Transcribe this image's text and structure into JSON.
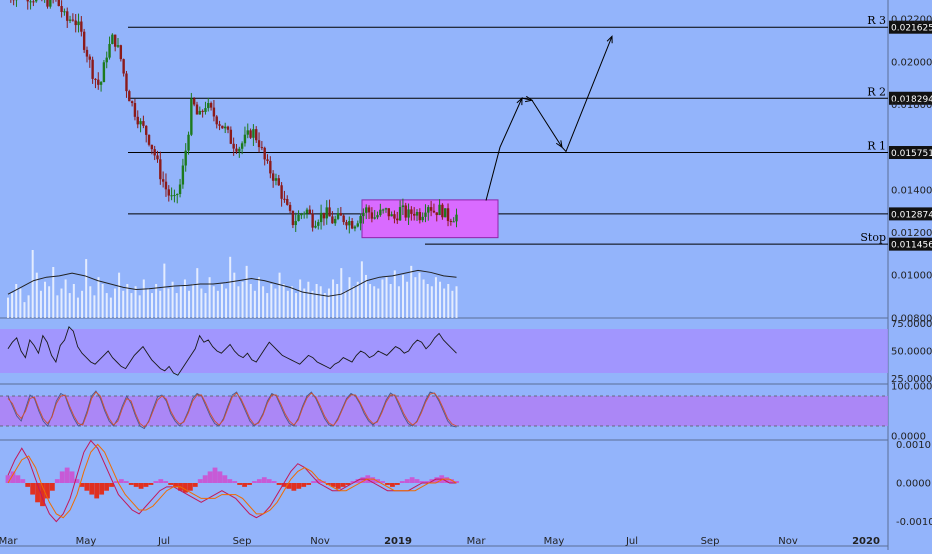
{
  "colors": {
    "background": "#93b4fb",
    "candle_up": "#1d7a1d",
    "candle_down": "#8b1a1a",
    "level_line": "#000000",
    "accumulation_box": "#d96bff",
    "rsi_band": "#a58cff",
    "stoch_band": "#b27cf5",
    "macd_hist_pos": "#c75ad6",
    "macd_hist_neg": "#e03020",
    "macd_line": "#c2185b",
    "signal_line": "#ef6c00",
    "volume_bar": "#ffffff"
  },
  "chart_data": [
    {
      "type": "candlestick",
      "title": "",
      "x_ticks": [
        "Mar",
        "May",
        "Jul",
        "Sep",
        "Nov",
        "2019",
        "Mar",
        "May",
        "Jul",
        "Sep",
        "Nov",
        "2020"
      ],
      "y_ticks": [
        "0.022000",
        "0.020000",
        "0.018000",
        "0.014000",
        "0.012000",
        "0.010000",
        "0.008000"
      ],
      "ylim": [
        0.0079,
        0.0229
      ],
      "close_path": [
        [
          0.0,
          0.0231
        ],
        [
          0.03,
          0.0232
        ],
        [
          0.06,
          0.023
        ],
        [
          0.085,
          0.0228
        ],
        [
          0.1,
          0.023
        ],
        [
          0.115,
          0.0226
        ],
        [
          0.13,
          0.0219
        ],
        [
          0.145,
          0.0221
        ],
        [
          0.16,
          0.0215
        ],
        [
          0.175,
          0.0205
        ],
        [
          0.19,
          0.0194
        ],
        [
          0.205,
          0.0188
        ],
        [
          0.22,
          0.0204
        ],
        [
          0.235,
          0.0212
        ],
        [
          0.25,
          0.0203
        ],
        [
          0.265,
          0.0187
        ],
        [
          0.28,
          0.0178
        ],
        [
          0.295,
          0.0171
        ],
        [
          0.31,
          0.0166
        ],
        [
          0.325,
          0.0158
        ],
        [
          0.34,
          0.0147
        ],
        [
          0.355,
          0.0139
        ],
        [
          0.37,
          0.0134
        ],
        [
          0.385,
          0.0143
        ],
        [
          0.4,
          0.0164
        ],
        [
          0.41,
          0.0182
        ],
        [
          0.425,
          0.0173
        ],
        [
          0.44,
          0.018
        ],
        [
          0.455,
          0.0176
        ],
        [
          0.47,
          0.0172
        ],
        [
          0.485,
          0.0168
        ],
        [
          0.5,
          0.0162
        ],
        [
          0.515,
          0.016
        ],
        [
          0.53,
          0.0164
        ],
        [
          0.545,
          0.0168
        ],
        [
          0.56,
          0.0162
        ],
        [
          0.575,
          0.0152
        ],
        [
          0.59,
          0.0147
        ],
        [
          0.605,
          0.0141
        ],
        [
          0.62,
          0.0132
        ],
        [
          0.635,
          0.0125
        ],
        [
          0.65,
          0.0128
        ],
        [
          0.665,
          0.0131
        ],
        [
          0.68,
          0.0125
        ],
        [
          0.695,
          0.0128
        ],
        [
          0.71,
          0.0129
        ],
        [
          0.725,
          0.0125
        ],
        [
          0.74,
          0.0127
        ],
        [
          0.755,
          0.0126
        ],
        [
          0.77,
          0.0124
        ],
        [
          0.785,
          0.0128
        ],
        [
          0.8,
          0.0131
        ],
        [
          0.815,
          0.0127
        ],
        [
          0.83,
          0.0129
        ],
        [
          0.845,
          0.013
        ],
        [
          0.86,
          0.0126
        ],
        [
          0.875,
          0.0131
        ],
        [
          0.89,
          0.0128
        ],
        [
          0.905,
          0.013
        ],
        [
          0.92,
          0.0128
        ],
        [
          0.935,
          0.0134
        ],
        [
          0.95,
          0.013
        ],
        [
          0.965,
          0.0131
        ],
        [
          0.98,
          0.0127
        ],
        [
          1.0,
          0.0128
        ]
      ],
      "accumulation_box": {
        "from": "Dec",
        "to": "Mar",
        "low": 0.01176,
        "high": 0.01353
      },
      "projection": [
        {
          "date": "Mar",
          "price": 0.0135
        },
        {
          "date": "Mar",
          "price": 0.016
        },
        {
          "date": "Apr",
          "price": 0.0183
        },
        {
          "date": "Apr",
          "price": 0.0182
        },
        {
          "date": "May",
          "price": 0.016
        },
        {
          "date": "May",
          "price": 0.0158
        },
        {
          "date": "Jun",
          "price": 0.0212
        }
      ],
      "horizontal_levels": [
        {
          "label": "R 3",
          "value": 0.021625,
          "value_text": "0.021625",
          "tag": "dark"
        },
        {
          "label": "R 2",
          "value": 0.018294,
          "value_text": "0.018294",
          "tag": "dark"
        },
        {
          "label": "R 1",
          "value": 0.015751,
          "value_text": "0.015751",
          "tag": "dark"
        },
        {
          "label": "",
          "value": 0.012874,
          "value_text": "0.012874",
          "tag": "dark"
        },
        {
          "label": "Stop",
          "value": 0.011456,
          "value_text": "0.011456",
          "tag": "dark"
        }
      ]
    },
    {
      "type": "bar",
      "name": "volume",
      "values": [
        18,
        22,
        30,
        26,
        14,
        20,
        60,
        40,
        24,
        32,
        28,
        45,
        20,
        26,
        34,
        22,
        30,
        18,
        24,
        52,
        28,
        20,
        36,
        30,
        22,
        18,
        26,
        40,
        24,
        30,
        22,
        28,
        20,
        34,
        26,
        22,
        30,
        24,
        48,
        26,
        32,
        22,
        28,
        34,
        24,
        30,
        44,
        26,
        22,
        36,
        28,
        24,
        30,
        26,
        54,
        40,
        28,
        32,
        46,
        30,
        24,
        36,
        28,
        22,
        30,
        26,
        40,
        30,
        24,
        28,
        22,
        34,
        26,
        32,
        24,
        30,
        28,
        22,
        26,
        34,
        30,
        44,
        24,
        36,
        28,
        32,
        50,
        38,
        30,
        28,
        26,
        34,
        36,
        30,
        42,
        28,
        38,
        32,
        46,
        36,
        40,
        34,
        30,
        28,
        36,
        32,
        26,
        30,
        24,
        28
      ],
      "moving_average": [
        0.35,
        0.45,
        0.55,
        0.6,
        0.62,
        0.66,
        0.62,
        0.55,
        0.5,
        0.45,
        0.42,
        0.43,
        0.45,
        0.47,
        0.48,
        0.5,
        0.5,
        0.52,
        0.55,
        0.58,
        0.55,
        0.5,
        0.45,
        0.38,
        0.35,
        0.32,
        0.35,
        0.45,
        0.55,
        0.6,
        0.62,
        0.66,
        0.7,
        0.67,
        0.62,
        0.6
      ]
    },
    {
      "type": "line",
      "name": "rsi",
      "y_ticks": [
        "75.0000",
        "50.0000",
        "25.0000"
      ],
      "ylim": [
        20,
        80
      ],
      "band": [
        30,
        70
      ],
      "values": [
        52,
        58,
        62,
        50,
        44,
        60,
        55,
        48,
        64,
        58,
        46,
        40,
        55,
        60,
        72,
        68,
        54,
        48,
        44,
        40,
        38,
        42,
        46,
        50,
        44,
        40,
        36,
        34,
        40,
        46,
        50,
        54,
        48,
        42,
        38,
        34,
        32,
        36,
        30,
        28,
        34,
        40,
        46,
        52,
        64,
        58,
        60,
        54,
        50,
        48,
        52,
        56,
        50,
        46,
        44,
        48,
        42,
        40,
        46,
        52,
        58,
        54,
        50,
        46,
        44,
        42,
        40,
        38,
        42,
        46,
        44,
        40,
        38,
        36,
        34,
        38,
        40,
        44,
        42,
        40,
        46,
        50,
        48,
        44,
        46,
        50,
        48,
        46,
        50,
        54,
        52,
        48,
        50,
        56,
        60,
        58,
        52,
        56,
        62,
        66,
        60,
        56,
        52,
        48
      ]
    },
    {
      "type": "line",
      "name": "stochastic",
      "y_ticks": [
        "100.0000",
        "0.0000"
      ],
      "ylim": [
        0,
        100
      ],
      "band": [
        20,
        80
      ],
      "series": [
        {
          "values": [
            80,
            60,
            40,
            30,
            55,
            82,
            75,
            50,
            30,
            20,
            40,
            70,
            85,
            80,
            55,
            35,
            20,
            25,
            50,
            80,
            90,
            75,
            50,
            30,
            20,
            35,
            60,
            80,
            65,
            40,
            20,
            15,
            30,
            55,
            78,
            82,
            70,
            45,
            30,
            20,
            30,
            50,
            75,
            85,
            80,
            60,
            40,
            25,
            20,
            35,
            60,
            82,
            88,
            70,
            50,
            30,
            20,
            28,
            45,
            70,
            85,
            80,
            60,
            40,
            25,
            20,
            35,
            60,
            80,
            88,
            75,
            55,
            35,
            22,
            20,
            35,
            55,
            75,
            85,
            80,
            65,
            45,
            30,
            22,
            30,
            50,
            72,
            86,
            80,
            60,
            40,
            25,
            20,
            30,
            50,
            72,
            88,
            85,
            70,
            50,
            30,
            20,
            18
          ]
        },
        {
          "values": [
            75,
            65,
            45,
            35,
            50,
            75,
            78,
            55,
            35,
            25,
            38,
            65,
            80,
            82,
            60,
            40,
            25,
            22,
            45,
            75,
            88,
            80,
            55,
            35,
            22,
            30,
            55,
            75,
            70,
            45,
            25,
            18,
            28,
            50,
            72,
            80,
            74,
            50,
            34,
            24,
            28,
            46,
            70,
            82,
            82,
            65,
            45,
            30,
            22,
            32,
            55,
            78,
            86,
            74,
            55,
            35,
            23,
            26,
            42,
            66,
            82,
            82,
            65,
            45,
            30,
            22,
            32,
            56,
            76,
            86,
            78,
            60,
            40,
            26,
            21,
            32,
            52,
            72,
            82,
            82,
            68,
            50,
            34,
            25,
            28,
            46,
            68,
            82,
            82,
            65,
            45,
            30,
            22,
            28,
            46,
            68,
            84,
            86,
            74,
            55,
            35,
            24,
            20
          ]
        }
      ]
    },
    {
      "type": "line",
      "name": "macd",
      "y_ticks": [
        "0.0010",
        "0.0000",
        "-0.0010"
      ],
      "ylim": [
        -0.0014,
        0.0014
      ],
      "histogram": [
        0.0002,
        0.0003,
        0.0002,
        0.0001,
        -0.0001,
        -0.0003,
        -0.0005,
        -0.0006,
        -0.0004,
        -0.0002,
        0.0001,
        0.0003,
        0.0004,
        0.0003,
        0.0001,
        -0.0001,
        -0.0002,
        -0.0003,
        -0.0004,
        -0.0003,
        -0.0002,
        -0.0001,
        5e-05,
        0.0001,
        5e-05,
        -5e-05,
        -0.0001,
        -0.00015,
        -0.0001,
        -5e-05,
        5e-05,
        0.0001,
        5e-05,
        -5e-05,
        -0.0001,
        -0.0002,
        -0.00025,
        -0.0002,
        -0.0001,
        0.0001,
        0.0002,
        0.0003,
        0.0004,
        0.0003,
        0.0002,
        0.0001,
        5e-05,
        -5e-05,
        -0.0001,
        -5e-05,
        5e-05,
        0.0001,
        0.00015,
        0.0001,
        5e-05,
        -5e-05,
        -0.0001,
        -0.00015,
        -0.0002,
        -0.00015,
        -0.0001,
        -5e-05,
        5e-05,
        0.0001,
        5e-05,
        -5e-05,
        -0.0001,
        -0.00015,
        -0.0001,
        -5e-05,
        5e-05,
        0.0001,
        0.00015,
        0.0002,
        0.00015,
        0.0001,
        5e-05,
        -5e-05,
        -0.0001,
        -5e-05,
        5e-05,
        0.0001,
        0.00015,
        0.0001,
        5e-05,
        5e-05,
        0.0001,
        0.00015,
        0.0002,
        0.00015,
        0.0001,
        5e-05
      ],
      "series": [
        {
          "name": "",
          "values": [
            0.0002,
            0.0006,
            0.0009,
            0.0006,
            0.0001,
            -0.0004,
            -0.0008,
            -0.001,
            -0.0008,
            -0.0004,
            0.0002,
            0.0008,
            0.0011,
            0.0009,
            0.0005,
            0.0001,
            -0.0003,
            -0.0005,
            -0.0007,
            -0.0008,
            -0.0006,
            -0.0004,
            -0.0002,
            -0.0001,
            -0.0001,
            -0.0002,
            -0.0003,
            -0.0004,
            -0.0005,
            -0.0004,
            -0.0003,
            -0.0002,
            -0.0003,
            -0.0004,
            -0.0006,
            -0.0008,
            -0.0009,
            -0.0008,
            -0.0006,
            -0.0003,
            0.0,
            0.0003,
            0.0005,
            0.0004,
            0.0002,
            0.0,
            -0.0001,
            -0.0002,
            -0.0002,
            -0.0001,
            0.0,
            0.0001,
            0.0001,
            0.0,
            -0.0001,
            -0.0002,
            -0.0002,
            -0.0002,
            -0.0002,
            -0.0001,
            0.0,
            0.0,
            0.0001,
            0.0001,
            0.0,
            0.0
          ]
        },
        {
          "name": "",
          "values": [
            0.0,
            0.0003,
            0.0006,
            0.0007,
            0.0004,
            -0.0001,
            -0.0005,
            -0.0008,
            -0.0009,
            -0.0007,
            -0.0003,
            0.0003,
            0.0008,
            0.001,
            0.0008,
            0.0004,
            0.0,
            -0.0003,
            -0.0005,
            -0.0007,
            -0.0007,
            -0.0006,
            -0.0004,
            -0.0002,
            -0.0001,
            -0.0001,
            -0.0002,
            -0.0003,
            -0.0004,
            -0.0004,
            -0.0004,
            -0.0003,
            -0.0003,
            -0.0003,
            -0.0004,
            -0.0006,
            -0.0008,
            -0.0008,
            -0.0007,
            -0.0005,
            -0.0002,
            0.0001,
            0.0003,
            0.0004,
            0.0003,
            0.0001,
            0.0,
            -0.0001,
            -0.0002,
            -0.0002,
            -0.0001,
            0.0,
            0.0001,
            0.0001,
            0.0,
            -0.0001,
            -0.0002,
            -0.0002,
            -0.0002,
            -0.0002,
            -0.0001,
            0.0,
            0.0,
            0.0001,
            0.0001,
            0.0
          ]
        }
      ]
    }
  ]
}
